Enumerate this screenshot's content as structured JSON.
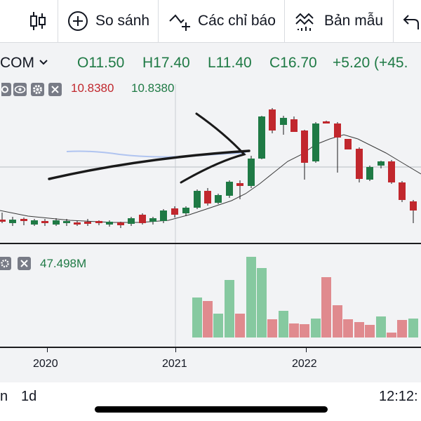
{
  "toolbar": {
    "compare_label": "So sánh",
    "indicators_label": "Các chỉ báo",
    "templates_label": "Bản mẫu"
  },
  "legend": {
    "symbol": "COM",
    "open": "O11.50",
    "high": "H17.40",
    "low": "L11.40",
    "close": "C16.70",
    "change": "+5.20 (+45."
  },
  "ma_legend": {
    "value1": "10.8380",
    "value2": "10.8380"
  },
  "volume_legend": {
    "value": "47.498M"
  },
  "time_axis": {
    "labels": [
      "2020",
      "2021",
      "2022"
    ]
  },
  "bottom": {
    "range": "n",
    "interval": "1d",
    "clock": "12:12:"
  },
  "colors": {
    "up": "#1f7a45",
    "down": "#c1272d",
    "vol_up": "#86c9a0",
    "vol_down": "#e08a8e"
  }
}
